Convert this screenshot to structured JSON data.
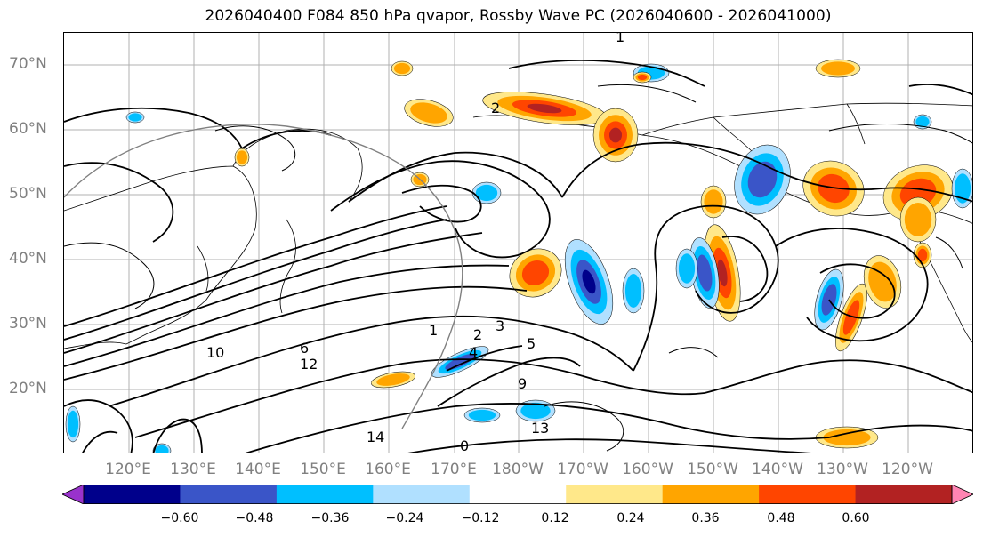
{
  "title": "2026040400 F084 850 hPa qvapor, Rossby Wave PC (2026040600 - 2026041000)",
  "map": {
    "projection": "PlateCarree",
    "lon_range_degE": [
      110,
      250
    ],
    "lat_range_degN": [
      10,
      75
    ],
    "gridlines": true,
    "lat_ticks": [
      "70°N",
      "60°N",
      "50°N",
      "40°N",
      "30°N",
      "20°N"
    ],
    "lon_ticks": [
      "120°E",
      "130°E",
      "140°E",
      "150°E",
      "160°E",
      "170°E",
      "180°W",
      "170°W",
      "160°W",
      "150°W",
      "140°W",
      "130°W",
      "120°W"
    ],
    "contour_labels": [
      "1",
      "2",
      "3",
      "4",
      "5",
      "6",
      "9",
      "10",
      "12",
      "13",
      "14",
      "0",
      "1",
      "2"
    ]
  },
  "colorbar": {
    "colors": [
      "#9932cc",
      "#00008b",
      "#3a55c8",
      "#00bfff",
      "#b0e0ff",
      "#ffffff",
      "#ffe88a",
      "#ffa500",
      "#ff4500",
      "#b22222",
      "#ff85b3"
    ],
    "ticks": [
      "−0.60",
      "−0.48",
      "−0.36",
      "−0.24",
      "−0.12",
      "0.12",
      "0.24",
      "0.36",
      "0.48",
      "0.60"
    ]
  },
  "anomaly_positive_colors": [
    "#ffe88a",
    "#ffa500",
    "#ff4500",
    "#b22222"
  ],
  "anomaly_negative_colors": [
    "#b0e0ff",
    "#00bfff",
    "#3a55c8",
    "#00008b"
  ]
}
